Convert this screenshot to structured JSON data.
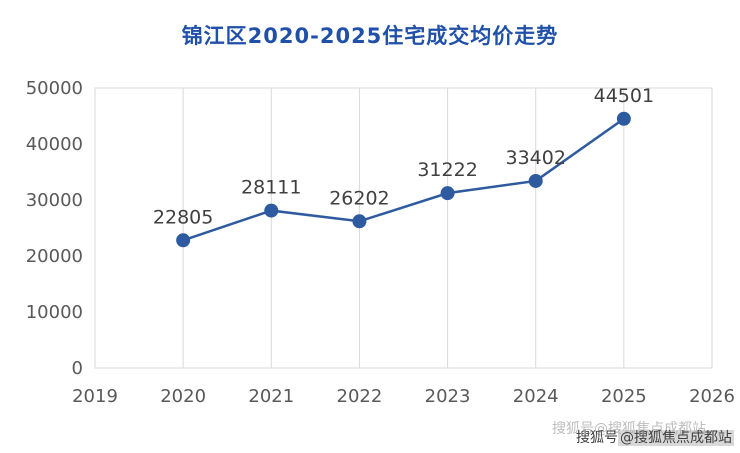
{
  "title": "锦江区2020-2025住宅成交均价走势",
  "watermark": {
    "prefix": "搜狐号",
    "handle": "@搜狐焦点成都站",
    "full": "搜狐号@搜狐焦点成都站"
  },
  "colors": {
    "title": "#2050a8",
    "line": "#2e5b9f",
    "grid": "#d9d9d9",
    "tick_label": "#595959",
    "data_label": "#404040"
  },
  "chart_data": {
    "type": "line",
    "title": "锦江区2020-2025住宅成交均价走势",
    "x": [
      2020,
      2021,
      2022,
      2023,
      2024,
      2025
    ],
    "values": [
      22805,
      28111,
      26202,
      31222,
      33402,
      44501
    ],
    "x_ticks": [
      "2019",
      "2020",
      "2021",
      "2022",
      "2023",
      "2024",
      "2025",
      "2026"
    ],
    "y_ticks": [
      0,
      10000,
      20000,
      30000,
      40000,
      50000
    ],
    "xlim": [
      2019,
      2026
    ],
    "ylim": [
      0,
      50000
    ],
    "xlabel": "",
    "ylabel": "",
    "grid": "vertical",
    "legend": "none",
    "data_labels": true,
    "line_color": "#2e5b9f",
    "marker": "circle"
  }
}
